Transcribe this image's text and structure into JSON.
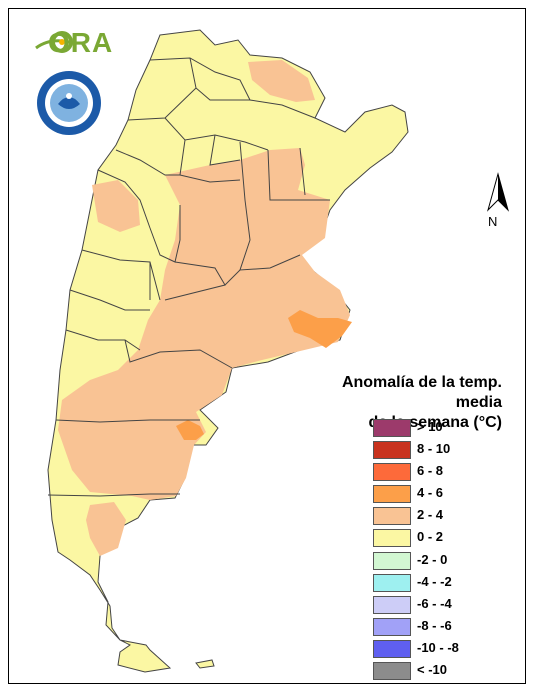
{
  "branding": {
    "logo_text": "ORA",
    "seal_name": "Servicio Meteorológico Nacional — Argentina"
  },
  "north_arrow": {
    "label": "N"
  },
  "legend": {
    "title_line1": "Anomalía de la temp. media",
    "title_line2": "de la semana (°C)",
    "items": [
      {
        "label": "> 10",
        "color": "#9c3a6b"
      },
      {
        "label": "8 - 10",
        "color": "#c8321e"
      },
      {
        "label": "6 - 8",
        "color": "#fd6a3a"
      },
      {
        "label": "4 - 6",
        "color": "#fc9f49"
      },
      {
        "label": "2 - 4",
        "color": "#f9c394"
      },
      {
        "label": "0 - 2",
        "color": "#fbf7a3"
      },
      {
        "label": "-2 - 0",
        "color": "#d2f7d2"
      },
      {
        "label": "-4 - -2",
        "color": "#9ef0f0"
      },
      {
        "label": "-6 - -4",
        "color": "#cdcdf7"
      },
      {
        "label": "-8 - -6",
        "color": "#a1a1f7"
      },
      {
        "label": "-10 - -8",
        "color": "#5f5ff0"
      },
      {
        "label": "< -10",
        "color": "#8c8c8c"
      }
    ]
  },
  "colors": {
    "anomaly_0_2": "#fbf7a3",
    "anomaly_2_4": "#f9c394",
    "anomaly_4_6": "#fc9f49",
    "boundary": "#444444"
  }
}
